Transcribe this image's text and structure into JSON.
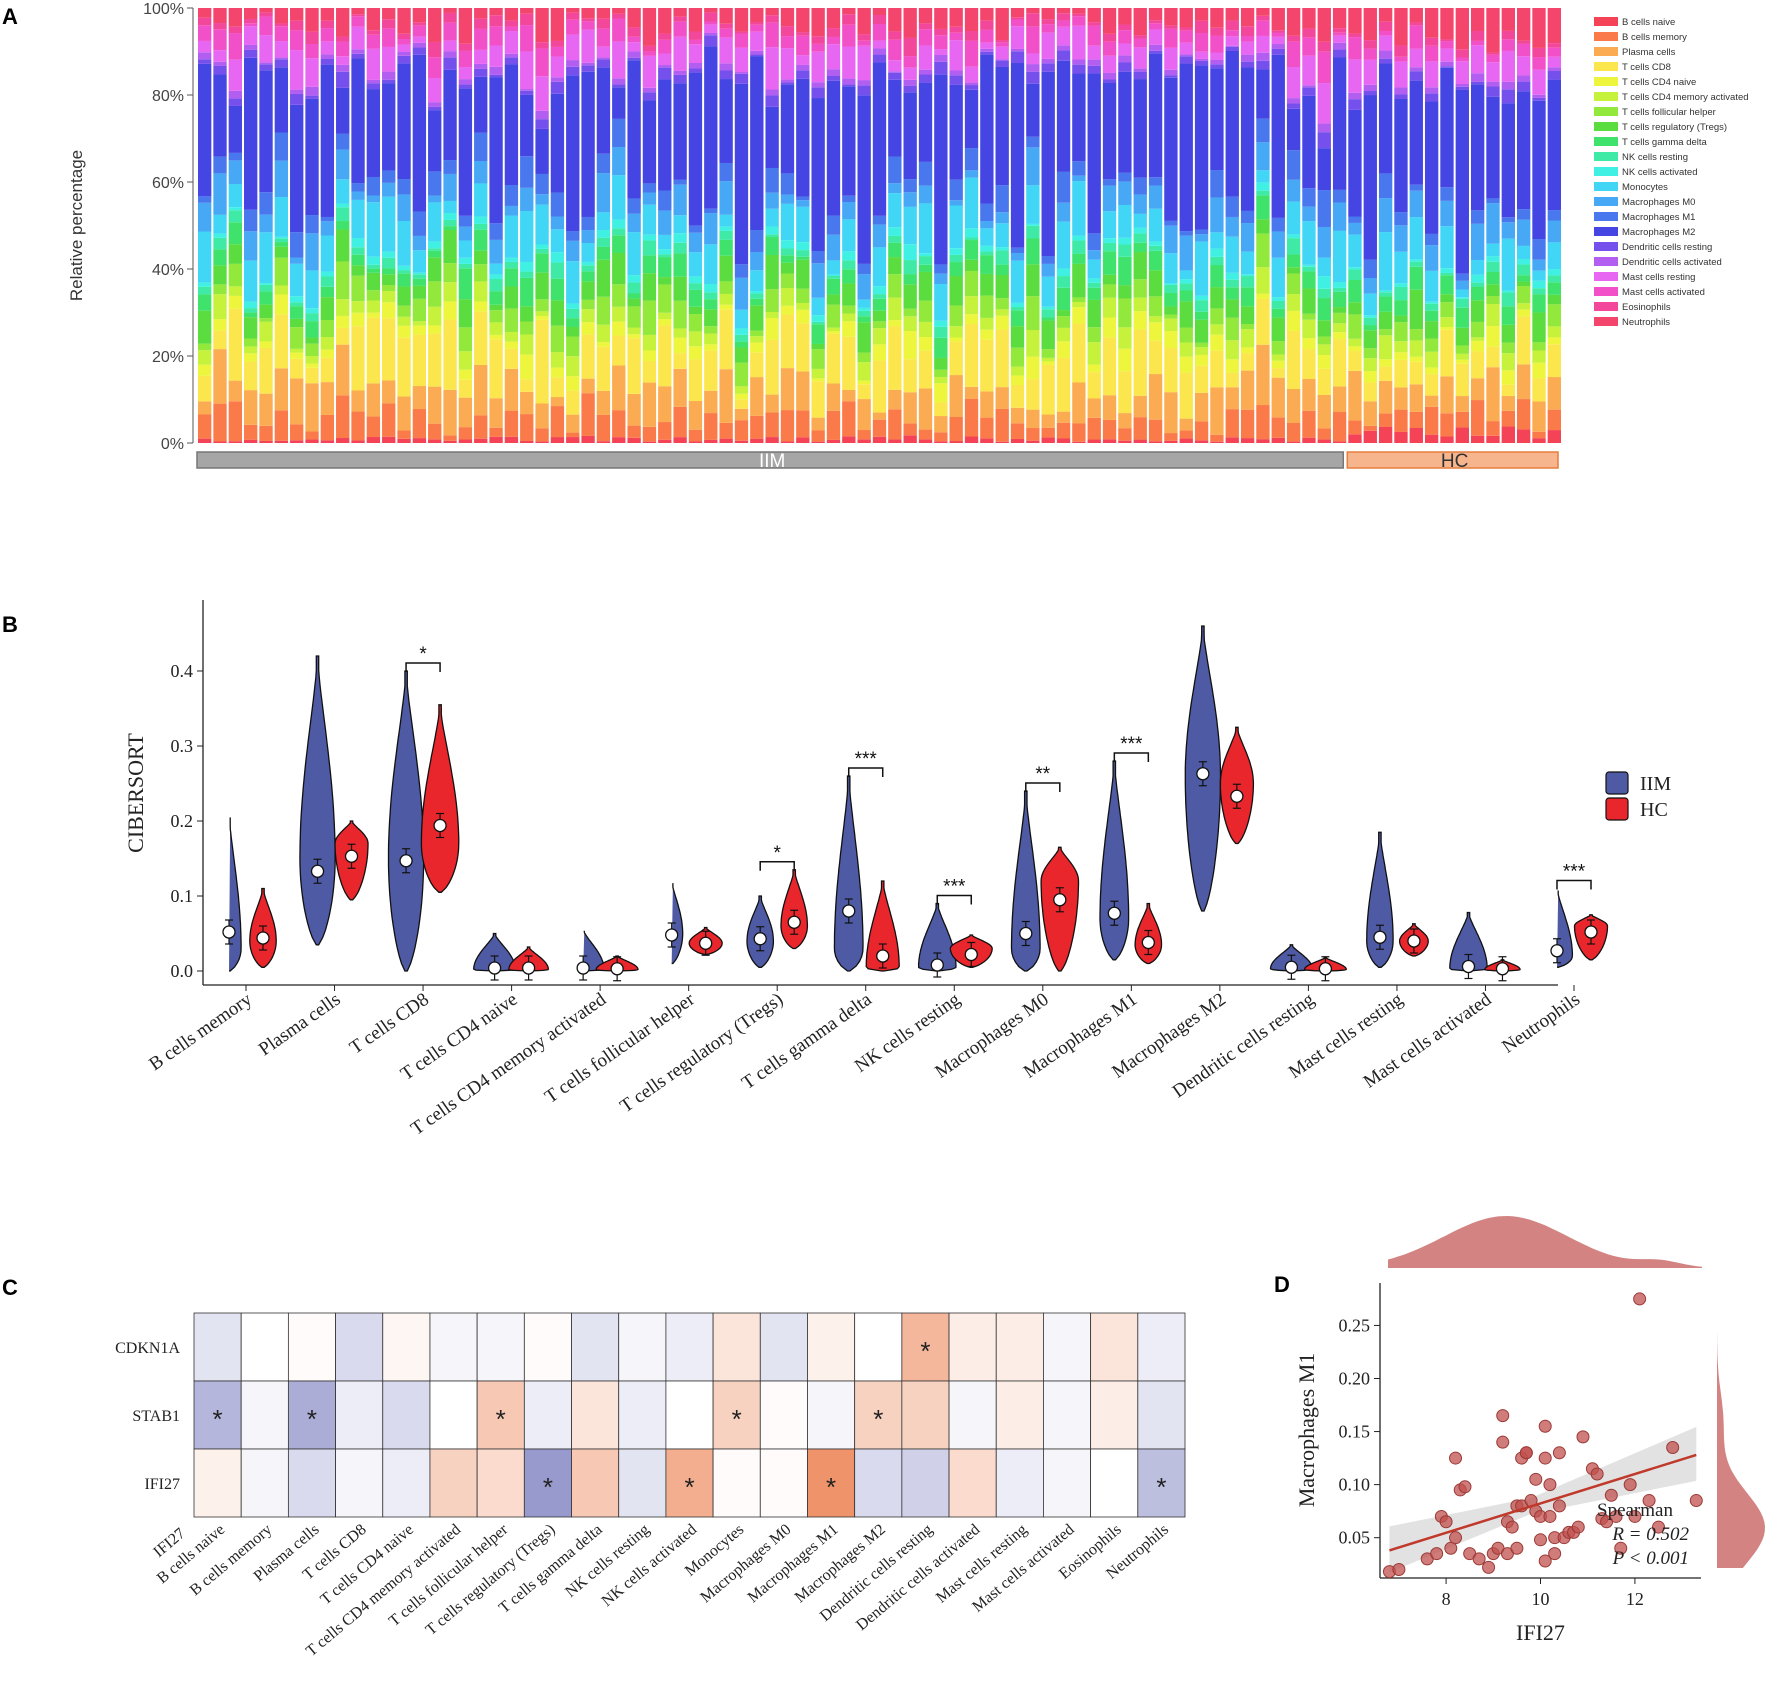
{
  "panel_labels": {
    "a": "A",
    "b": "B",
    "c": "C",
    "d": "D"
  },
  "chart_data": [
    {
      "panel": "A",
      "type": "bar",
      "stacked": true,
      "ylabel": "Relative percentage",
      "ylim": [
        0,
        100
      ],
      "yticks": [
        "0%",
        "20%",
        "40%",
        "60%",
        "80%",
        "100%"
      ],
      "groups": [
        {
          "label": "IIM",
          "n": 75,
          "color": "#a6a6a6"
        },
        {
          "label": "HC",
          "n": 14,
          "color": "#f7b58d"
        }
      ],
      "legend": [
        {
          "name": "B cells naive",
          "color": "#f44357"
        },
        {
          "name": "B cells memory",
          "color": "#fb7a4a"
        },
        {
          "name": "Plasma cells",
          "color": "#fbac52"
        },
        {
          "name": "T cells CD8",
          "color": "#fbe64e"
        },
        {
          "name": "T cells CD4 naive",
          "color": "#eef53d"
        },
        {
          "name": "T cells CD4 memory activated",
          "color": "#c7f23b"
        },
        {
          "name": "T cells follicular helper",
          "color": "#93e83c"
        },
        {
          "name": "T cells regulatory (Tregs)",
          "color": "#5bdc3f"
        },
        {
          "name": "T cells gamma delta",
          "color": "#3fe36b"
        },
        {
          "name": "NK cells resting",
          "color": "#3feaa6"
        },
        {
          "name": "NK cells activated",
          "color": "#40f1e3"
        },
        {
          "name": "Monocytes",
          "color": "#41d6f5"
        },
        {
          "name": "Macrophages M0",
          "color": "#47a9f5"
        },
        {
          "name": "Macrophages M1",
          "color": "#4877ee"
        },
        {
          "name": "Macrophages M2",
          "color": "#4545e3"
        },
        {
          "name": "Dendritic cells resting",
          "color": "#7650ec"
        },
        {
          "name": "Dendritic cells activated",
          "color": "#b25ef0"
        },
        {
          "name": "Mast cells resting",
          "color": "#e766f2"
        },
        {
          "name": "Mast cells activated",
          "color": "#f250c9"
        },
        {
          "name": "Eosinophils",
          "color": "#f2479a"
        },
        {
          "name": "Neutrophils",
          "color": "#f4456c"
        }
      ]
    },
    {
      "panel": "B",
      "type": "violin",
      "ylabel": "CIBERSORT",
      "ylim": [
        0,
        0.5
      ],
      "yticks": [
        "0.0",
        "0.1",
        "0.2",
        "0.3",
        "0.4"
      ],
      "series": [
        {
          "name": "IIM",
          "color": "#4e5aa3"
        },
        {
          "name": "HC",
          "color": "#e8262c"
        }
      ],
      "categories": [
        "B cells memory",
        "Plasma cells",
        "T cells CD8",
        "T cells CD4 naive",
        "T cells CD4 memory activated",
        "T cells follicular helper",
        "T cells regulatory (Tregs)",
        "T cells gamma delta",
        "NK cells resting",
        "Macrophages M0",
        "Macrophages M1",
        "Macrophages M2",
        "Dendritic cells resting",
        "Mast cells resting",
        "Mast cells activated",
        "Neutrophils"
      ],
      "iim": [
        {
          "min": 0.0,
          "max": 0.21,
          "median": 0.052,
          "mode": 0.03,
          "width": 0.55
        },
        {
          "min": 0.035,
          "max": 0.42,
          "median": 0.133,
          "mode": 0.15,
          "width": 0.8
        },
        {
          "min": 0.0,
          "max": 0.4,
          "median": 0.147,
          "mode": 0.15,
          "width": 0.8
        },
        {
          "min": 0.0,
          "max": 0.05,
          "median": 0.004,
          "mode": 0.002,
          "width": 0.95
        },
        {
          "min": 0.0,
          "max": 0.055,
          "median": 0.004,
          "mode": 0.002,
          "width": 0.95
        },
        {
          "min": 0.01,
          "max": 0.12,
          "median": 0.048,
          "mode": 0.05,
          "width": 0.5
        },
        {
          "min": 0.005,
          "max": 0.1,
          "median": 0.043,
          "mode": 0.04,
          "width": 0.6
        },
        {
          "min": 0.0,
          "max": 0.26,
          "median": 0.08,
          "mode": 0.03,
          "width": 0.65
        },
        {
          "min": 0.0,
          "max": 0.09,
          "median": 0.008,
          "mode": 0.005,
          "width": 0.85
        },
        {
          "min": 0.0,
          "max": 0.24,
          "median": 0.05,
          "mode": 0.03,
          "width": 0.65
        },
        {
          "min": 0.015,
          "max": 0.28,
          "median": 0.077,
          "mode": 0.07,
          "width": 0.65
        },
        {
          "min": 0.08,
          "max": 0.46,
          "median": 0.263,
          "mode": 0.26,
          "width": 0.8
        },
        {
          "min": 0.0,
          "max": 0.035,
          "median": 0.005,
          "mode": 0.003,
          "width": 0.95
        },
        {
          "min": 0.005,
          "max": 0.185,
          "median": 0.045,
          "mode": 0.04,
          "width": 0.6
        },
        {
          "min": 0.0,
          "max": 0.078,
          "median": 0.006,
          "mode": 0.003,
          "width": 0.85
        },
        {
          "min": 0.005,
          "max": 0.11,
          "median": 0.027,
          "mode": 0.02,
          "width": 0.7
        }
      ],
      "hc": [
        {
          "min": 0.005,
          "max": 0.11,
          "median": 0.044,
          "mode": 0.04,
          "width": 0.6
        },
        {
          "min": 0.095,
          "max": 0.2,
          "median": 0.153,
          "mode": 0.17,
          "width": 0.75
        },
        {
          "min": 0.105,
          "max": 0.355,
          "median": 0.194,
          "mode": 0.17,
          "width": 0.85
        },
        {
          "min": 0.0,
          "max": 0.032,
          "median": 0.004,
          "mode": 0.002,
          "width": 0.9
        },
        {
          "min": 0.0,
          "max": 0.02,
          "median": 0.003,
          "mode": 0.002,
          "width": 0.95
        },
        {
          "min": 0.022,
          "max": 0.058,
          "median": 0.037,
          "mode": 0.037,
          "width": 0.75
        },
        {
          "min": 0.03,
          "max": 0.135,
          "median": 0.065,
          "mode": 0.06,
          "width": 0.6
        },
        {
          "min": 0.0,
          "max": 0.12,
          "median": 0.02,
          "mode": 0.005,
          "width": 0.75
        },
        {
          "min": 0.005,
          "max": 0.048,
          "median": 0.022,
          "mode": 0.03,
          "width": 0.95
        },
        {
          "min": 0.0,
          "max": 0.165,
          "median": 0.095,
          "mode": 0.12,
          "width": 0.85
        },
        {
          "min": 0.01,
          "max": 0.09,
          "median": 0.038,
          "mode": 0.035,
          "width": 0.6
        },
        {
          "min": 0.17,
          "max": 0.325,
          "median": 0.233,
          "mode": 0.25,
          "width": 0.75
        },
        {
          "min": 0.0,
          "max": 0.018,
          "median": 0.003,
          "mode": 0.002,
          "width": 0.95
        },
        {
          "min": 0.02,
          "max": 0.063,
          "median": 0.04,
          "mode": 0.04,
          "width": 0.65
        },
        {
          "min": 0.0,
          "max": 0.015,
          "median": 0.003,
          "mode": 0.002,
          "width": 0.8
        },
        {
          "min": 0.015,
          "max": 0.075,
          "median": 0.052,
          "mode": 0.06,
          "width": 0.75
        }
      ],
      "significance": [
        {
          "category": "T cells CD8",
          "label": "*"
        },
        {
          "category": "T cells regulatory (Tregs)",
          "label": "*"
        },
        {
          "category": "T cells gamma delta",
          "label": "***"
        },
        {
          "category": "NK cells resting",
          "label": "***"
        },
        {
          "category": "Macrophages M0",
          "label": "**"
        },
        {
          "category": "Macrophages M1",
          "label": "***"
        },
        {
          "category": "Neutrophils",
          "label": "***"
        }
      ]
    },
    {
      "panel": "C",
      "type": "heatmap",
      "rows": [
        "CDKN1A",
        "STAB1",
        "IFI27"
      ],
      "corner_label": "IFI27",
      "columns": [
        "B cells naive",
        "B cells memory",
        "Plasma cells",
        "T cells CD8",
        "T cells CD4 naive",
        "T cells CD4 memory activated",
        "T cells follicular helper",
        "T cells regulatory (Tregs)",
        "T cells gamma delta",
        "NK cells resting",
        "NK cells activated",
        "Monocytes",
        "Macrophages M0",
        "Macrophages M1",
        "Macrophages M2",
        "Dendritic cells resting",
        "Dendritic cells activated",
        "Mast cells resting",
        "Mast cells activated",
        "Eosinophils",
        "Neutrophils"
      ],
      "values": [
        [
          -0.15,
          0.0,
          0.02,
          -0.2,
          0.05,
          -0.05,
          -0.05,
          0.02,
          -0.15,
          -0.05,
          -0.1,
          0.15,
          -0.15,
          0.08,
          0.0,
          0.4,
          0.1,
          0.1,
          -0.05,
          0.15,
          -0.1
        ],
        [
          -0.4,
          -0.05,
          -0.45,
          -0.1,
          -0.2,
          0.0,
          0.3,
          -0.1,
          0.15,
          -0.1,
          0.0,
          0.25,
          0.02,
          -0.05,
          0.25,
          0.25,
          -0.05,
          0.1,
          -0.05,
          0.1,
          -0.15
        ],
        [
          0.08,
          -0.05,
          -0.2,
          -0.05,
          -0.1,
          0.25,
          0.2,
          -0.55,
          0.3,
          -0.15,
          0.45,
          0.02,
          0.02,
          0.6,
          -0.2,
          -0.25,
          0.2,
          -0.1,
          -0.05,
          0.0,
          -0.35
        ]
      ],
      "stars": [
        {
          "row": 0,
          "col": 15
        },
        {
          "row": 1,
          "col": 0
        },
        {
          "row": 1,
          "col": 2
        },
        {
          "row": 1,
          "col": 6
        },
        {
          "row": 1,
          "col": 11
        },
        {
          "row": 1,
          "col": 14
        },
        {
          "row": 2,
          "col": 7
        },
        {
          "row": 2,
          "col": 10
        },
        {
          "row": 2,
          "col": 13
        },
        {
          "row": 2,
          "col": 20
        }
      ],
      "star_label": "*"
    },
    {
      "panel": "D",
      "type": "scatter",
      "xlabel": "IFI27",
      "ylabel": "Macrophages M1",
      "xlim": [
        6.6,
        13.4
      ],
      "ylim": [
        0.012,
        0.29
      ],
      "xticks": [
        8,
        10,
        12
      ],
      "yticks": [
        0.05,
        0.1,
        0.15,
        0.2,
        0.25
      ],
      "ytick_labels": [
        "0.05",
        "0.10",
        "0.15",
        "0.20",
        "0.25"
      ],
      "fit": {
        "x0": 6.8,
        "y0": 0.038,
        "x1": 13.3,
        "y1": 0.128
      },
      "color": "#c0504d",
      "annotation": [
        "Spearman",
        "R = 0.502",
        "P < 0.001"
      ],
      "points": [
        [
          6.8,
          0.018
        ],
        [
          7.0,
          0.02
        ],
        [
          7.6,
          0.03
        ],
        [
          7.8,
          0.035
        ],
        [
          7.9,
          0.07
        ],
        [
          8.0,
          0.065
        ],
        [
          8.1,
          0.04
        ],
        [
          8.2,
          0.05
        ],
        [
          8.2,
          0.125
        ],
        [
          8.3,
          0.095
        ],
        [
          8.4,
          0.098
        ],
        [
          8.5,
          0.035
        ],
        [
          8.7,
          0.03
        ],
        [
          8.9,
          0.022
        ],
        [
          9.0,
          0.035
        ],
        [
          9.1,
          0.04
        ],
        [
          9.2,
          0.165
        ],
        [
          9.2,
          0.14
        ],
        [
          9.3,
          0.035
        ],
        [
          9.3,
          0.065
        ],
        [
          9.4,
          0.06
        ],
        [
          9.5,
          0.08
        ],
        [
          9.5,
          0.04
        ],
        [
          9.6,
          0.08
        ],
        [
          9.6,
          0.125
        ],
        [
          9.7,
          0.13
        ],
        [
          9.7,
          0.13
        ],
        [
          9.8,
          0.085
        ],
        [
          9.9,
          0.075
        ],
        [
          9.9,
          0.105
        ],
        [
          10.0,
          0.07
        ],
        [
          10.0,
          0.048
        ],
        [
          10.1,
          0.155
        ],
        [
          10.1,
          0.125
        ],
        [
          10.1,
          0.028
        ],
        [
          10.2,
          0.07
        ],
        [
          10.2,
          0.1
        ],
        [
          10.3,
          0.05
        ],
        [
          10.3,
          0.035
        ],
        [
          10.4,
          0.13
        ],
        [
          10.4,
          0.08
        ],
        [
          10.5,
          0.05
        ],
        [
          10.6,
          0.055
        ],
        [
          10.7,
          0.055
        ],
        [
          10.8,
          0.06
        ],
        [
          10.9,
          0.145
        ],
        [
          11.1,
          0.115
        ],
        [
          11.2,
          0.11
        ],
        [
          11.3,
          0.068
        ],
        [
          11.4,
          0.065
        ],
        [
          11.5,
          0.09
        ],
        [
          11.6,
          0.07
        ],
        [
          11.7,
          0.04
        ],
        [
          11.9,
          0.1
        ],
        [
          12.0,
          0.07
        ],
        [
          12.1,
          0.275
        ],
        [
          12.3,
          0.085
        ],
        [
          12.5,
          0.06
        ],
        [
          12.8,
          0.135
        ],
        [
          13.3,
          0.085
        ]
      ]
    }
  ]
}
